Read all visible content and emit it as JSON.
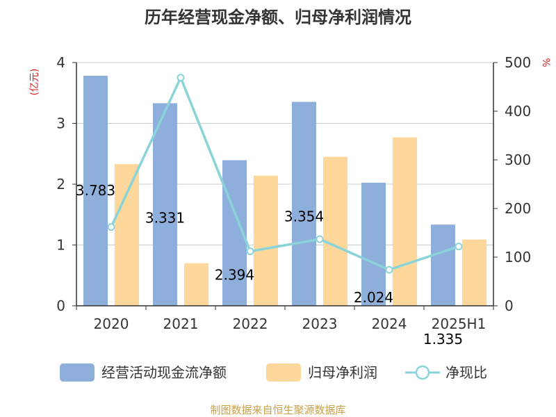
{
  "chart_data": {
    "type": "bar",
    "title": "历年经营现金净额、归母净利润情况",
    "categories": [
      "2020",
      "2021",
      "2022",
      "2023",
      "2024",
      "2025H1"
    ],
    "y_left_unit": "(亿元)",
    "y_right_unit": "%",
    "y_left_lim": [
      0,
      4
    ],
    "y_left_ticks": [
      "0",
      "1",
      "2",
      "3",
      "4"
    ],
    "y_right_lim": [
      0,
      500
    ],
    "y_right_ticks": [
      "0",
      "100",
      "200",
      "300",
      "400",
      "500"
    ],
    "grid": true,
    "legend_position": "bottom",
    "series": [
      {
        "name": "经营活动现金流净额",
        "type": "bar",
        "axis": "left",
        "color": "#8eaedb",
        "values": [
          3.783,
          3.331,
          2.394,
          3.354,
          2.024,
          1.335
        ],
        "labels": [
          "3.783",
          "3.331",
          "2.394",
          "3.354",
          "2.024",
          "1.335"
        ]
      },
      {
        "name": "归母净利润",
        "type": "bar",
        "axis": "left",
        "color": "#fed89a",
        "values": [
          2.33,
          0.7,
          2.14,
          2.45,
          2.77,
          1.09
        ]
      },
      {
        "name": "净现比",
        "type": "line",
        "axis": "right",
        "color": "#8ad3d8",
        "values": [
          162,
          469,
          112,
          137,
          74,
          122
        ]
      }
    ]
  },
  "source": "制图数据来自恒生聚源数据库"
}
